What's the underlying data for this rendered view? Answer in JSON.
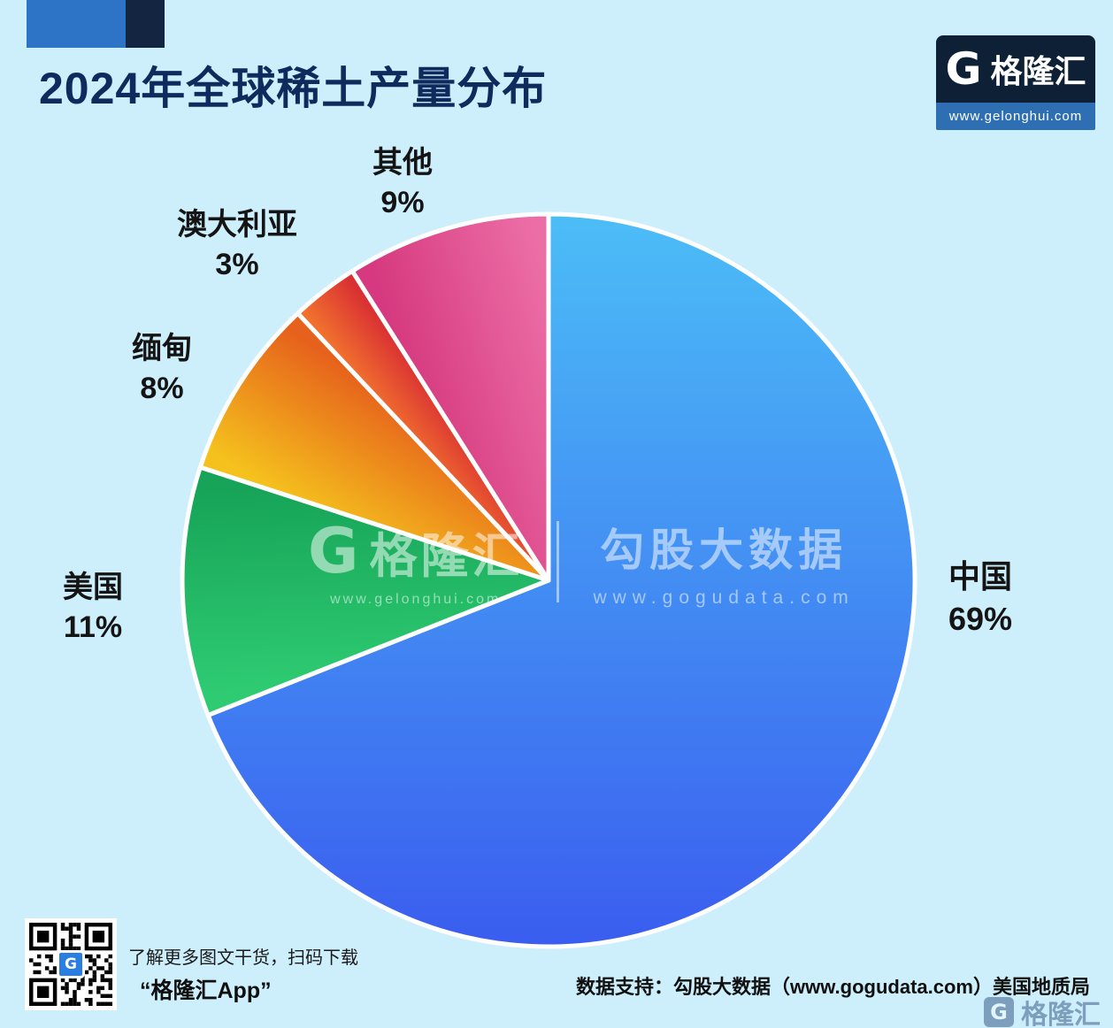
{
  "header": {
    "title": "2024年全球稀土产量分布",
    "logo": {
      "g": "G",
      "brand": "格隆汇",
      "url": "www.gelonghui.com"
    }
  },
  "chart_data": {
    "type": "pie",
    "title": "2024年全球稀土产量分布",
    "start_angle_deg": 0,
    "direction": "clockwise",
    "legend_position": "outside-labels",
    "slices": [
      {
        "label": "中国",
        "value": 69,
        "pct_text": "69%",
        "grad": "vertical",
        "color_start": "#4cbdf7",
        "color_end": "#3a5def"
      },
      {
        "label": "美国",
        "value": 11,
        "pct_text": "11%",
        "grad": "angular",
        "color_start": "#2ecb72",
        "color_end": "#17a458"
      },
      {
        "label": "缅甸",
        "value": 8,
        "pct_text": "8%",
        "grad": "angular",
        "color_start": "#f5c21d",
        "color_end": "#e6611c"
      },
      {
        "label": "澳大利亚",
        "value": 3,
        "pct_text": "3%",
        "grad": "angular",
        "color_start": "#f1702e",
        "color_end": "#d93033"
      },
      {
        "label": "其他",
        "value": 9,
        "pct_text": "9%",
        "grad": "angular",
        "color_start": "#d6397f",
        "color_end": "#ec6ea6"
      }
    ]
  },
  "watermark": {
    "brand_g": "G",
    "brand": "格隆汇",
    "brand_url": "www.gelonghui.com",
    "partner": "勾股大数据",
    "partner_url": "www.gogudata.com"
  },
  "footer": {
    "qr_logo_g": "G",
    "qr_caption_line1": "了解更多图文干货，扫码下载",
    "qr_caption_line2": "“格隆汇App”",
    "source": "数据支持：勾股大数据（www.gogudata.com）美国地质局",
    "corner_g": "G",
    "corner_brand": "格隆汇"
  },
  "colors": {
    "background": "#cdeefb",
    "title": "#0f2a5c",
    "deco_blue": "#2d74c6",
    "deco_navy": "#142542",
    "logo_navy": "#0e2036",
    "logo_blue_bar": "#2e6fb4"
  }
}
